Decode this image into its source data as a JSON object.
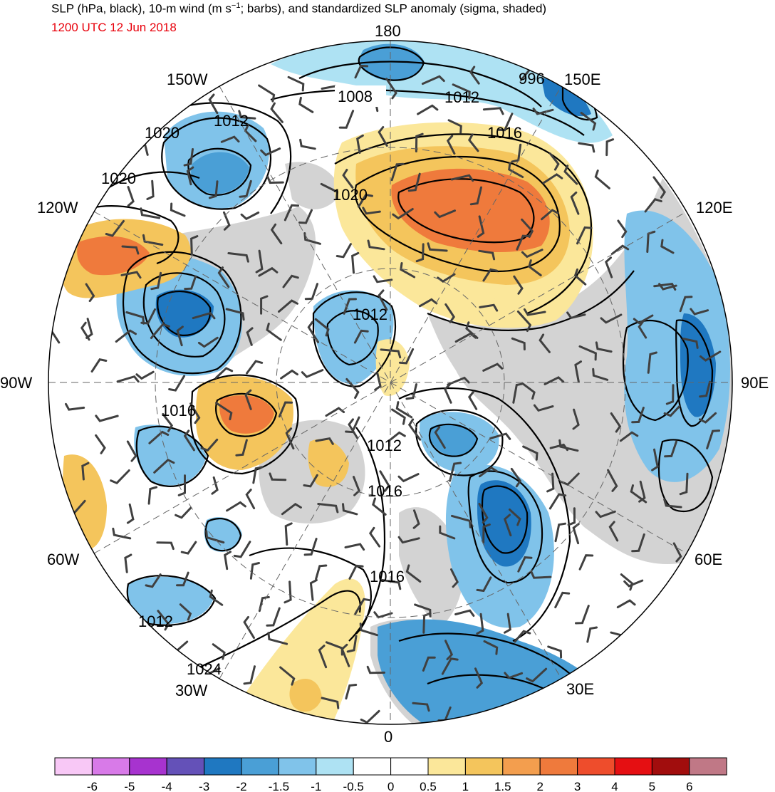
{
  "header": {
    "title_prefix": "SLP (hPa, black), 10-m wind (m s",
    "title_sup": "−1",
    "title_suffix": "; barbs), and standardized SLP anomaly (sigma, shaded)",
    "valid_time": "1200 UTC 12 Jun 2018"
  },
  "map": {
    "projection": "north-polar-stereographic",
    "longitude_labels": [
      "180",
      "150E",
      "120E",
      "90E",
      "60E",
      "30E",
      "0",
      "30W",
      "60W",
      "90W",
      "120W",
      "150W"
    ],
    "isobar_labels": [
      "1008",
      "1012",
      "996",
      "1016",
      "1020",
      "1012",
      "1020",
      "1020",
      "1012",
      "1016",
      "1012",
      "1016",
      "1016",
      "1012",
      "1024"
    ],
    "colors": {
      "ocean_white": "#ffffff",
      "land_gray": "#d3d3d3",
      "contour": "#000000",
      "barb": "#404040"
    }
  },
  "colorbar": {
    "tick_labels": [
      "-6",
      "-5",
      "-4",
      "-3",
      "-2",
      "-1.5",
      "-1",
      "-0.5",
      "0",
      "0.5",
      "1",
      "1.5",
      "2",
      "3",
      "4",
      "5",
      "6"
    ],
    "colors": [
      "#f8c8f6",
      "#d87ae8",
      "#a733cf",
      "#6451b8",
      "#1f78c1",
      "#4a9fd6",
      "#80c3ea",
      "#aee2f3",
      "#ffffff",
      "#ffffff",
      "#fbe79a",
      "#f4c55c",
      "#f39e4e",
      "#ef7a3c",
      "#ee4d2c",
      "#e50f12",
      "#a10d0d",
      "#c07886"
    ]
  }
}
